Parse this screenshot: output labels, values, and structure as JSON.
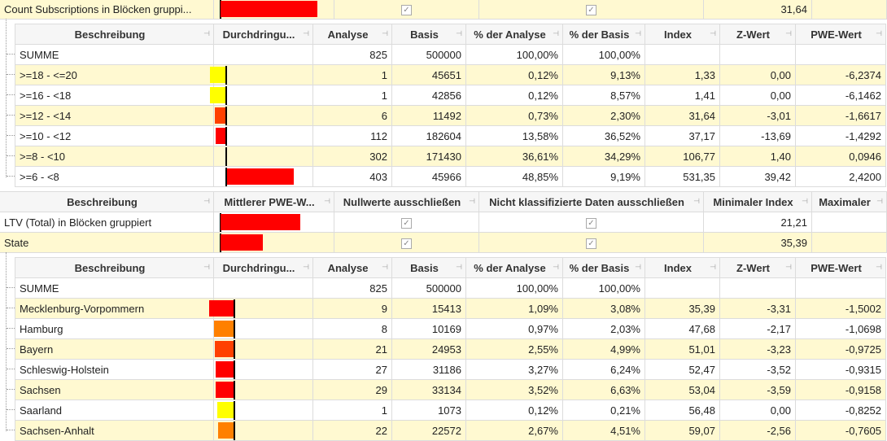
{
  "colors": {
    "red": "#FF0000",
    "orange_red": "#FF4000",
    "orange": "#FF8000",
    "yellow": "#FFFF00",
    "row_alt": "#FFF9D1"
  },
  "outer_header": [
    "Beschreibung",
    "Mittlerer  PWE-W...",
    "Nullwerte ausschließen",
    "Nicht klassifizierte Daten ausschließen",
    "Minimaler Index",
    "Maximaler"
  ],
  "top_row": {
    "label": "Count Subscriptions in Blöcken gruppi...",
    "bar": {
      "color": "#FF0000",
      "fraction": 0.85
    },
    "nullwerte": true,
    "nicht_klass": true,
    "min_index": "31,64",
    "max": ""
  },
  "outer_rows": [
    {
      "label": "LTV (Total) in Blöcken gruppiert",
      "bar": {
        "color": "#FF0000",
        "fraction": 0.7
      },
      "nullwerte": true,
      "nicht_klass": true,
      "min_index": "21,21",
      "max": ""
    },
    {
      "label": "State",
      "bar": {
        "color": "#FF0000",
        "fraction": 0.37
      },
      "nullwerte": true,
      "nicht_klass": true,
      "min_index": "35,39",
      "max": ""
    }
  ],
  "sub_header": [
    "Beschreibung",
    "Durchdringu...",
    "Analyse",
    "Basis",
    "% der Analyse",
    "% der Basis",
    "Index",
    "Z-Wert",
    "PWE-Wert"
  ],
  "subgrid1": [
    {
      "label": "SUMME",
      "bar": null,
      "cells": [
        "825",
        "500000",
        "100,00%",
        "100,00%",
        "",
        "",
        ""
      ]
    },
    {
      "label": ">=18 - <=20",
      "bar": {
        "color": "#FFFF00",
        "value": -0.2
      },
      "cells": [
        "1",
        "45651",
        "0,12%",
        "9,13%",
        "1,33",
        "0,00",
        "-6,2374"
      ]
    },
    {
      "label": ">=16 - <18",
      "bar": {
        "color": "#FFFF00",
        "value": -0.2
      },
      "cells": [
        "1",
        "42856",
        "0,12%",
        "8,57%",
        "1,41",
        "0,00",
        "-6,1462"
      ]
    },
    {
      "label": ">=12 - <14",
      "bar": {
        "color": "#FF4000",
        "value": -0.14
      },
      "cells": [
        "6",
        "11492",
        "0,73%",
        "2,30%",
        "31,64",
        "-3,01",
        "-1,6617"
      ]
    },
    {
      "label": ">=10 - <12",
      "bar": {
        "color": "#FF0000",
        "value": -0.13
      },
      "cells": [
        "112",
        "182604",
        "13,58%",
        "36,52%",
        "37,17",
        "-13,69",
        "-1,4292"
      ]
    },
    {
      "label": ">=8 - <10",
      "bar": {
        "color": "#FFFF00",
        "value": 0.0
      },
      "cells": [
        "302",
        "171430",
        "36,61%",
        "34,29%",
        "106,77",
        "1,40",
        "0,0946"
      ]
    },
    {
      "label": ">=6 - <8",
      "bar": {
        "color": "#FF0000",
        "value": 0.85
      },
      "cells": [
        "403",
        "45966",
        "48,85%",
        "9,19%",
        "531,35",
        "39,42",
        "2,4200"
      ]
    }
  ],
  "subgrid2": [
    {
      "label": "SUMME",
      "bar": null,
      "cells": [
        "825",
        "500000",
        "100,00%",
        "100,00%",
        "",
        "",
        ""
      ]
    },
    {
      "label": "Mecklenburg-Vorpommern",
      "bar": {
        "color": "#FF0000",
        "value": -0.31
      },
      "cells": [
        "9",
        "15413",
        "1,09%",
        "3,08%",
        "35,39",
        "-3,31",
        "-1,5002"
      ]
    },
    {
      "label": "Hamburg",
      "bar": {
        "color": "#FF8000",
        "value": -0.25
      },
      "cells": [
        "8",
        "10169",
        "0,97%",
        "2,03%",
        "47,68",
        "-2,17",
        "-1,0698"
      ]
    },
    {
      "label": "Bayern",
      "bar": {
        "color": "#FF4000",
        "value": -0.24
      },
      "cells": [
        "21",
        "24953",
        "2,55%",
        "4,99%",
        "51,01",
        "-3,23",
        "-0,9725"
      ]
    },
    {
      "label": "Schleswig-Holstein",
      "bar": {
        "color": "#FF0000",
        "value": -0.23
      },
      "cells": [
        "27",
        "31186",
        "3,27%",
        "6,24%",
        "52,47",
        "-3,52",
        "-0,9315"
      ]
    },
    {
      "label": "Sachsen",
      "bar": {
        "color": "#FF0000",
        "value": -0.23
      },
      "cells": [
        "29",
        "33134",
        "3,52%",
        "6,63%",
        "53,04",
        "-3,59",
        "-0,9158"
      ]
    },
    {
      "label": "Saarland",
      "bar": {
        "color": "#FFFF00",
        "value": -0.21
      },
      "cells": [
        "1",
        "1073",
        "0,12%",
        "0,21%",
        "56,48",
        "0,00",
        "-0,8252"
      ]
    },
    {
      "label": "Sachsen-Anhalt",
      "bar": {
        "color": "#FF8000",
        "value": -0.2
      },
      "cells": [
        "22",
        "22572",
        "2,67%",
        "4,51%",
        "59,07",
        "-2,56",
        "-0,7605"
      ]
    }
  ]
}
